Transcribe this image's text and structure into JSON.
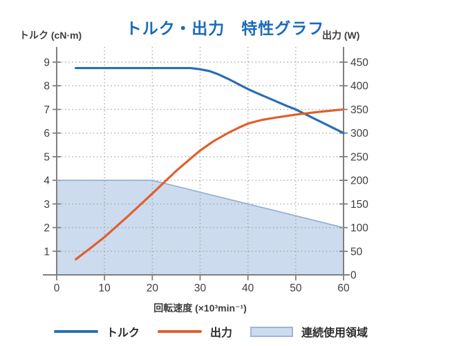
{
  "page": {
    "background": "#ffffff"
  },
  "chart_data": {
    "type": "line",
    "title": "トルク・出力　特性グラフ",
    "title_color": "#1a6ab8",
    "x_axis": {
      "label": "回転速度 (×10³min⁻¹)",
      "min": 0,
      "max": 60,
      "ticks": [
        0,
        10,
        20,
        30,
        40,
        50,
        60
      ],
      "grid_ticks": [
        10,
        20,
        30,
        40,
        50
      ]
    },
    "y_left": {
      "label": "トルク (cN·m)",
      "min": 0,
      "max": 9,
      "ticks": [
        1,
        2,
        3,
        4,
        5,
        6,
        7,
        8,
        9
      ]
    },
    "y_right": {
      "label": "出力 (W)",
      "min": 0,
      "max": 450,
      "ticks": [
        0,
        50,
        100,
        150,
        200,
        250,
        300,
        350,
        400,
        450
      ]
    },
    "grid": {
      "style": "dotted",
      "color": "#9e9e9e"
    },
    "axis_color": "#7f7f7f",
    "series": [
      {
        "name": "トルク",
        "axis": "left",
        "color": "#2a6db5",
        "points": [
          [
            4,
            8.75
          ],
          [
            10,
            8.75
          ],
          [
            16,
            8.75
          ],
          [
            22,
            8.75
          ],
          [
            28,
            8.75
          ],
          [
            30,
            8.7
          ],
          [
            32,
            8.62
          ],
          [
            34,
            8.47
          ],
          [
            36,
            8.28
          ],
          [
            38,
            8.07
          ],
          [
            40,
            7.86
          ],
          [
            42,
            7.68
          ],
          [
            45,
            7.42
          ],
          [
            48,
            7.16
          ],
          [
            50,
            7.0
          ],
          [
            52,
            6.8
          ],
          [
            54,
            6.6
          ],
          [
            56,
            6.4
          ],
          [
            58,
            6.2
          ],
          [
            60,
            6.0
          ]
        ]
      },
      {
        "name": "出力",
        "axis": "right",
        "color": "#e05f2d",
        "points": [
          [
            4,
            33
          ],
          [
            7,
            56
          ],
          [
            10,
            80
          ],
          [
            15,
            125
          ],
          [
            20,
            172
          ],
          [
            25,
            220
          ],
          [
            28,
            246
          ],
          [
            30,
            263
          ],
          [
            33,
            284
          ],
          [
            36,
            301
          ],
          [
            38,
            311
          ],
          [
            40,
            320
          ],
          [
            43,
            328
          ],
          [
            46,
            333
          ],
          [
            50,
            339
          ],
          [
            55,
            345
          ],
          [
            60,
            350
          ]
        ]
      }
    ],
    "region": {
      "name": "連続使用領域",
      "fill": "#ccdbee",
      "stroke": "#92add2",
      "points": [
        [
          0,
          4
        ],
        [
          20,
          4
        ],
        [
          30,
          3.5
        ],
        [
          40,
          3.0
        ],
        [
          50,
          2.5
        ],
        [
          60,
          2.0
        ]
      ]
    },
    "legend": [
      {
        "label": "トルク",
        "swatch": "line",
        "color": "#2a6db5"
      },
      {
        "label": "出力",
        "swatch": "line",
        "color": "#e05f2d"
      },
      {
        "label": "連続使用領域",
        "swatch": "area",
        "fill": "#ccdbee",
        "stroke": "#9db6d9"
      }
    ]
  }
}
